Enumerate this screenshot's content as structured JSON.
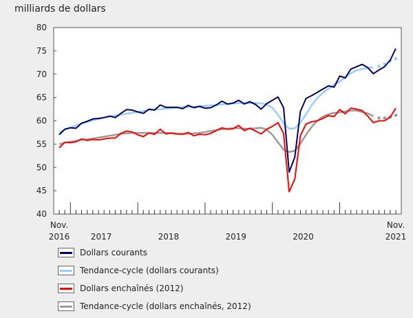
{
  "chart_data": {
    "type": "line",
    "ylabel": "milliards de dollars",
    "ylim": [
      40,
      80
    ],
    "yticks": [
      40,
      45,
      50,
      55,
      60,
      65,
      70,
      75,
      80
    ],
    "start_month": "2016-11",
    "n_months": 61,
    "x_tick_labels": [
      {
        "line1": "Nov.",
        "line2": "2016",
        "month_index": 0
      },
      {
        "line1": "",
        "line2": "2017",
        "month_index": 7.5
      },
      {
        "line1": "",
        "line2": "2018",
        "month_index": 19.5
      },
      {
        "line1": "",
        "line2": "2019",
        "month_index": 31.5
      },
      {
        "line1": "",
        "line2": "2020",
        "month_index": 43.5
      },
      {
        "line1": "Nov.",
        "line2": "2021",
        "month_index": 60
      }
    ],
    "series": [
      {
        "name": "Dollars courants",
        "color": "#000066",
        "style": "solid",
        "values": [
          57.0,
          58.2,
          58.5,
          58.4,
          59.5,
          59.9,
          60.4,
          60.5,
          60.7,
          61.0,
          60.7,
          61.6,
          62.4,
          62.3,
          61.9,
          61.6,
          62.5,
          62.3,
          63.4,
          62.9,
          62.9,
          62.9,
          62.6,
          63.3,
          62.8,
          63.1,
          62.7,
          62.8,
          63.4,
          64.2,
          63.6,
          63.8,
          64.4,
          63.6,
          64.1,
          63.5,
          62.5,
          63.7,
          64.4,
          65.1,
          62.8,
          49.0,
          52.2,
          62.0,
          64.8,
          65.4,
          66.1,
          66.8,
          67.5,
          67.2,
          69.6,
          69.2,
          71.1,
          71.6,
          72.1,
          71.4,
          70.1,
          70.9,
          71.6,
          73.0,
          75.5
        ]
      },
      {
        "name": "Tendance-cycle (dollars courants)",
        "color": "#99ccff",
        "style": "trend",
        "dotted_last": 4,
        "values": [
          57.5,
          58.1,
          58.6,
          59.0,
          59.4,
          59.8,
          60.1,
          60.4,
          60.7,
          60.9,
          61.1,
          61.3,
          61.5,
          61.7,
          61.9,
          62.1,
          62.3,
          62.4,
          62.5,
          62.6,
          62.7,
          62.8,
          62.9,
          63.0,
          63.0,
          63.1,
          63.2,
          63.3,
          63.4,
          63.5,
          63.6,
          63.7,
          63.8,
          63.8,
          63.8,
          63.8,
          63.7,
          63.5,
          62.8,
          61.3,
          59.5,
          58.3,
          58.4,
          59.6,
          61.4,
          63.3,
          64.9,
          66.0,
          66.9,
          67.7,
          68.4,
          69.3,
          70.2,
          70.8,
          71.1,
          71.3,
          71.5,
          71.7,
          72.2,
          72.8,
          73.3
        ]
      },
      {
        "name": "Dollars enchaînés (2012)",
        "color": "#ff0000",
        "style": "solid",
        "values": [
          54.2,
          55.4,
          55.3,
          55.5,
          56.1,
          55.8,
          56.0,
          55.9,
          56.1,
          56.3,
          56.3,
          57.3,
          57.8,
          57.6,
          57.0,
          56.6,
          57.4,
          57.1,
          58.2,
          57.2,
          57.4,
          57.2,
          57.1,
          57.5,
          56.8,
          57.1,
          57.0,
          57.3,
          57.9,
          58.5,
          58.2,
          58.3,
          59.0,
          57.9,
          58.4,
          57.8,
          57.2,
          58.2,
          58.8,
          59.6,
          57.3,
          44.8,
          47.5,
          56.8,
          59.3,
          59.8,
          60.0,
          60.5,
          61.1,
          60.9,
          62.4,
          61.5,
          62.7,
          62.5,
          62.2,
          61.0,
          59.6,
          60.0,
          60.0,
          60.8,
          62.7
        ]
      },
      {
        "name": "Tendance-cycle (dollars enchaînés, 2012)",
        "color": "#999999",
        "style": "trend",
        "dotted_last": 4,
        "values": [
          55.0,
          55.3,
          55.5,
          55.7,
          55.9,
          56.0,
          56.2,
          56.4,
          56.6,
          56.8,
          57.0,
          57.2,
          57.3,
          57.4,
          57.4,
          57.4,
          57.4,
          57.4,
          57.4,
          57.4,
          57.3,
          57.2,
          57.2,
          57.2,
          57.3,
          57.4,
          57.6,
          57.8,
          58.0,
          58.2,
          58.3,
          58.4,
          58.4,
          58.3,
          58.3,
          58.4,
          58.5,
          58.1,
          57.0,
          55.4,
          53.8,
          53.3,
          53.6,
          55.1,
          57.0,
          58.7,
          60.0,
          60.9,
          61.4,
          61.7,
          61.8,
          62.0,
          62.2,
          62.2,
          61.9,
          61.6,
          61.0,
          60.6,
          60.6,
          60.8,
          61.2
        ]
      }
    ],
    "legend_placement": "bottom"
  }
}
